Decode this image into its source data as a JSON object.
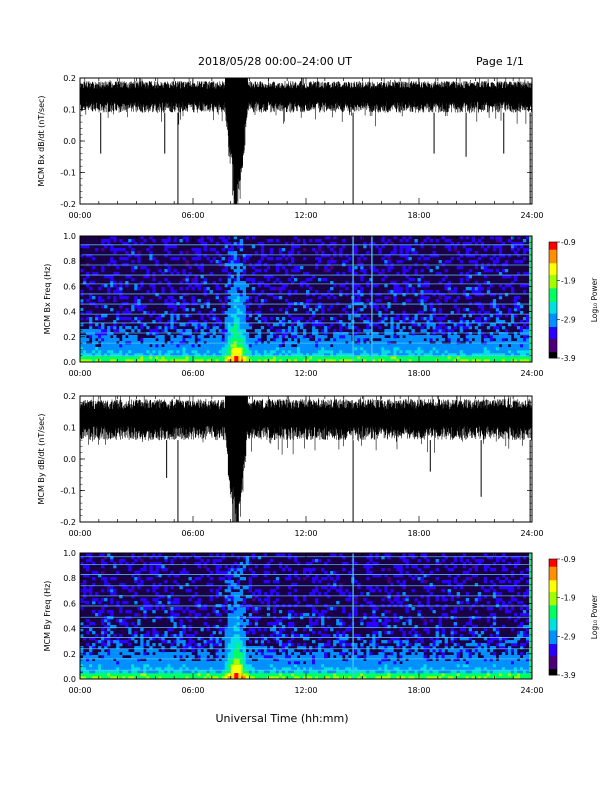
{
  "header": {
    "title": "2018/05/28  00:00–24:00 UT",
    "page": "Page 1/1"
  },
  "footer": {
    "xlabel": "Universal Time (hh:mm)"
  },
  "time_ticks": [
    "00:00",
    "06:00",
    "12:00",
    "18:00",
    "24:00"
  ],
  "colorscale": {
    "label": "Log₁₀ Power",
    "ticks": [
      "-0.9",
      "-1.9",
      "-2.9",
      "-3.9"
    ],
    "colors": [
      "#000000",
      "#4b007a",
      "#2a00ff",
      "#0090ff",
      "#00e0e0",
      "#00ff60",
      "#a0ff00",
      "#ffff00",
      "#ff9000",
      "#ff0000"
    ]
  },
  "chart_data": [
    {
      "type": "line",
      "panel": "Bx dB/dt",
      "ylabel": "MCM Bx dB/dt (nT/sec)",
      "ylim": [
        -0.2,
        0.2
      ],
      "yticks": [
        "0.2",
        "0.1",
        "0.0",
        "-0.1",
        "-0.2"
      ],
      "xlim_hours": [
        0,
        24
      ],
      "baseline_band": [
        0.09,
        0.19
      ],
      "events_hours": [
        1.1,
        4.5,
        5.2,
        8.3,
        14.5,
        18.8,
        20.5,
        22.5,
        23.9
      ],
      "events_min": [
        -0.04,
        -0.04,
        -0.2,
        -0.2,
        -0.2,
        -0.04,
        -0.05,
        -0.04,
        -0.2
      ]
    },
    {
      "type": "heatmap",
      "panel": "Bx Freq",
      "ylabel": "MCM Bx Freq (Hz)",
      "ylim": [
        0.0,
        1.0
      ],
      "yticks": [
        "1.0",
        "0.8",
        "0.6",
        "0.4",
        "0.2",
        "0.0"
      ],
      "xlim_hours": [
        0,
        24
      ],
      "zlim": [
        -3.9,
        -0.9
      ],
      "harmonic_lines_hz": [
        0.05,
        0.15,
        0.23,
        0.31,
        0.38,
        0.46,
        0.54,
        0.62,
        0.69,
        0.77,
        0.85,
        0.93,
        1.0
      ],
      "burst_hours": [
        8.3
      ],
      "streak_hours": [
        14.5,
        15.5
      ]
    },
    {
      "type": "line",
      "panel": "By dB/dt",
      "ylabel": "MCM By dB/dt (nT/sec)",
      "ylim": [
        -0.2,
        0.2
      ],
      "yticks": [
        "0.2",
        "0.1",
        "0.0",
        "-0.1",
        "-0.2"
      ],
      "xlim_hours": [
        0,
        24
      ],
      "baseline_band": [
        0.06,
        0.19
      ],
      "events_hours": [
        4.6,
        5.2,
        8.3,
        14.5,
        18.6,
        21.3,
        23.9
      ],
      "events_min": [
        -0.06,
        -0.2,
        -0.2,
        -0.2,
        -0.04,
        -0.12,
        -0.2
      ]
    },
    {
      "type": "heatmap",
      "panel": "By Freq",
      "ylabel": "MCM By Freq (Hz)",
      "ylim": [
        0.0,
        1.0
      ],
      "yticks": [
        "1.0",
        "0.8",
        "0.6",
        "0.4",
        "0.2",
        "0.0"
      ],
      "xlim_hours": [
        0,
        24
      ],
      "zlim": [
        -3.9,
        -0.9
      ],
      "harmonic_lines_hz": [
        0.07,
        0.16,
        0.24,
        0.33,
        0.41,
        0.49,
        0.58,
        0.66,
        0.74,
        0.83,
        0.91,
        0.97
      ],
      "burst_hours": [
        8.3
      ],
      "streak_hours": [
        14.5
      ]
    }
  ]
}
